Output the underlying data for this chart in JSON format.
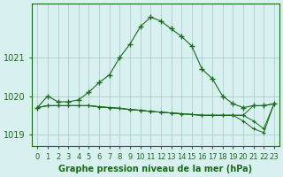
{
  "hours": [
    0,
    1,
    2,
    3,
    4,
    5,
    6,
    7,
    8,
    9,
    10,
    11,
    12,
    13,
    14,
    15,
    16,
    17,
    18,
    19,
    20,
    21,
    22,
    23
  ],
  "line1": [
    1019.7,
    1020.0,
    1019.85,
    1019.85,
    1019.9,
    1020.1,
    1020.35,
    1020.55,
    1021.0,
    1021.35,
    1021.8,
    1022.05,
    1021.95,
    1021.75,
    1021.55,
    1021.3,
    1020.7,
    1020.45,
    1020.0,
    1019.8,
    1019.7,
    1019.75,
    1019.75,
    1019.8
  ],
  "line2": [
    1019.7,
    1019.75,
    1019.75,
    1019.75,
    1019.75,
    1019.75,
    1019.72,
    1019.7,
    1019.68,
    1019.65,
    1019.63,
    1019.6,
    1019.58,
    1019.56,
    1019.54,
    1019.52,
    1019.5,
    1019.5,
    1019.5,
    1019.5,
    1019.5,
    1019.75,
    1019.75,
    1019.8
  ],
  "line3": [
    1019.7,
    1019.75,
    1019.75,
    1019.75,
    1019.75,
    1019.75,
    1019.72,
    1019.7,
    1019.68,
    1019.65,
    1019.63,
    1019.6,
    1019.58,
    1019.56,
    1019.54,
    1019.52,
    1019.5,
    1019.5,
    1019.5,
    1019.5,
    1019.35,
    1019.15,
    1019.05,
    1019.8
  ],
  "line4": [
    1019.7,
    1019.75,
    1019.75,
    1019.75,
    1019.75,
    1019.75,
    1019.72,
    1019.7,
    1019.68,
    1019.65,
    1019.63,
    1019.6,
    1019.58,
    1019.56,
    1019.54,
    1019.52,
    1019.5,
    1019.5,
    1019.5,
    1019.5,
    1019.5,
    1019.35,
    1019.15,
    1019.8
  ],
  "line_color": "#1a6b1a",
  "background_color": "#d8f0f0",
  "grid_color": "#a0c8c8",
  "axis_color": "#1a6b1a",
  "ylabel_ticks": [
    1019,
    1020,
    1021
  ],
  "ylim": [
    1018.7,
    1022.4
  ],
  "xlabel": "Graphe pression niveau de la mer (hPa)",
  "tick_fontsize": 7
}
